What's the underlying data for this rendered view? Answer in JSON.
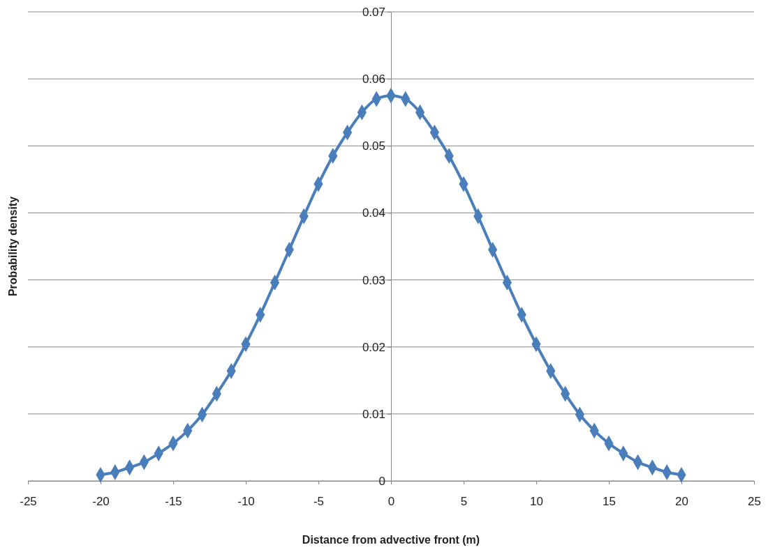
{
  "chart_data": {
    "type": "line",
    "xlabel": "Distance from  advective front (m)",
    "ylabel": "Probability density",
    "x": [
      -20,
      -19,
      -18,
      -17,
      -16,
      -15,
      -14,
      -13,
      -12,
      -11,
      -10,
      -9,
      -8,
      -7,
      -6,
      -5,
      -4,
      -3,
      -2,
      -1,
      0,
      1,
      2,
      3,
      4,
      5,
      6,
      7,
      8,
      9,
      10,
      11,
      12,
      13,
      14,
      15,
      16,
      17,
      18,
      19,
      20
    ],
    "series": [
      {
        "color": "#4a7ebb",
        "values": [
          0.0009,
          0.0013,
          0.002,
          0.0028,
          0.0041,
          0.0056,
          0.0075,
          0.0099,
          0.013,
          0.0164,
          0.0204,
          0.0248,
          0.0296,
          0.0345,
          0.0395,
          0.0443,
          0.0485,
          0.052,
          0.055,
          0.057,
          0.0575,
          0.057,
          0.055,
          0.052,
          0.0485,
          0.0443,
          0.0395,
          0.0345,
          0.0296,
          0.0248,
          0.0204,
          0.0164,
          0.013,
          0.0099,
          0.0075,
          0.0056,
          0.0041,
          0.0028,
          0.002,
          0.0013,
          0.0009
        ]
      }
    ],
    "xlim": [
      -25,
      25
    ],
    "xticks": [
      -25,
      -20,
      -15,
      -10,
      -5,
      0,
      5,
      10,
      15,
      20,
      25
    ],
    "ylim": [
      0,
      0.07
    ],
    "yticks": [
      0,
      0.01,
      0.02,
      0.03,
      0.04,
      0.05,
      0.06,
      0.07
    ],
    "grid": "y",
    "marker": "diamond",
    "line_style": "solid"
  }
}
